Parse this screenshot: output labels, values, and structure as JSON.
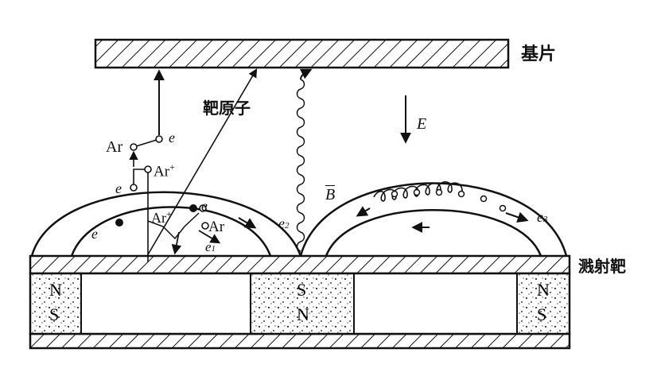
{
  "labels": {
    "substrate": "基片",
    "target_atom": "靶原子",
    "sputter_target": "溅射靶",
    "ar": "Ar",
    "ar_plus": "Ar",
    "plus_sign": "+",
    "electron": "e",
    "e1": "e",
    "e1_sub": "1",
    "e2": "e",
    "e2_sub": "2",
    "e3": "e",
    "e3_sub": "3",
    "field_e": "E",
    "field_b": "B"
  },
  "magnets": {
    "left": {
      "top": "N",
      "bottom": "S"
    },
    "center": {
      "top": "S",
      "bottom": "N"
    },
    "right": {
      "top": "N",
      "bottom": "S"
    }
  }
}
